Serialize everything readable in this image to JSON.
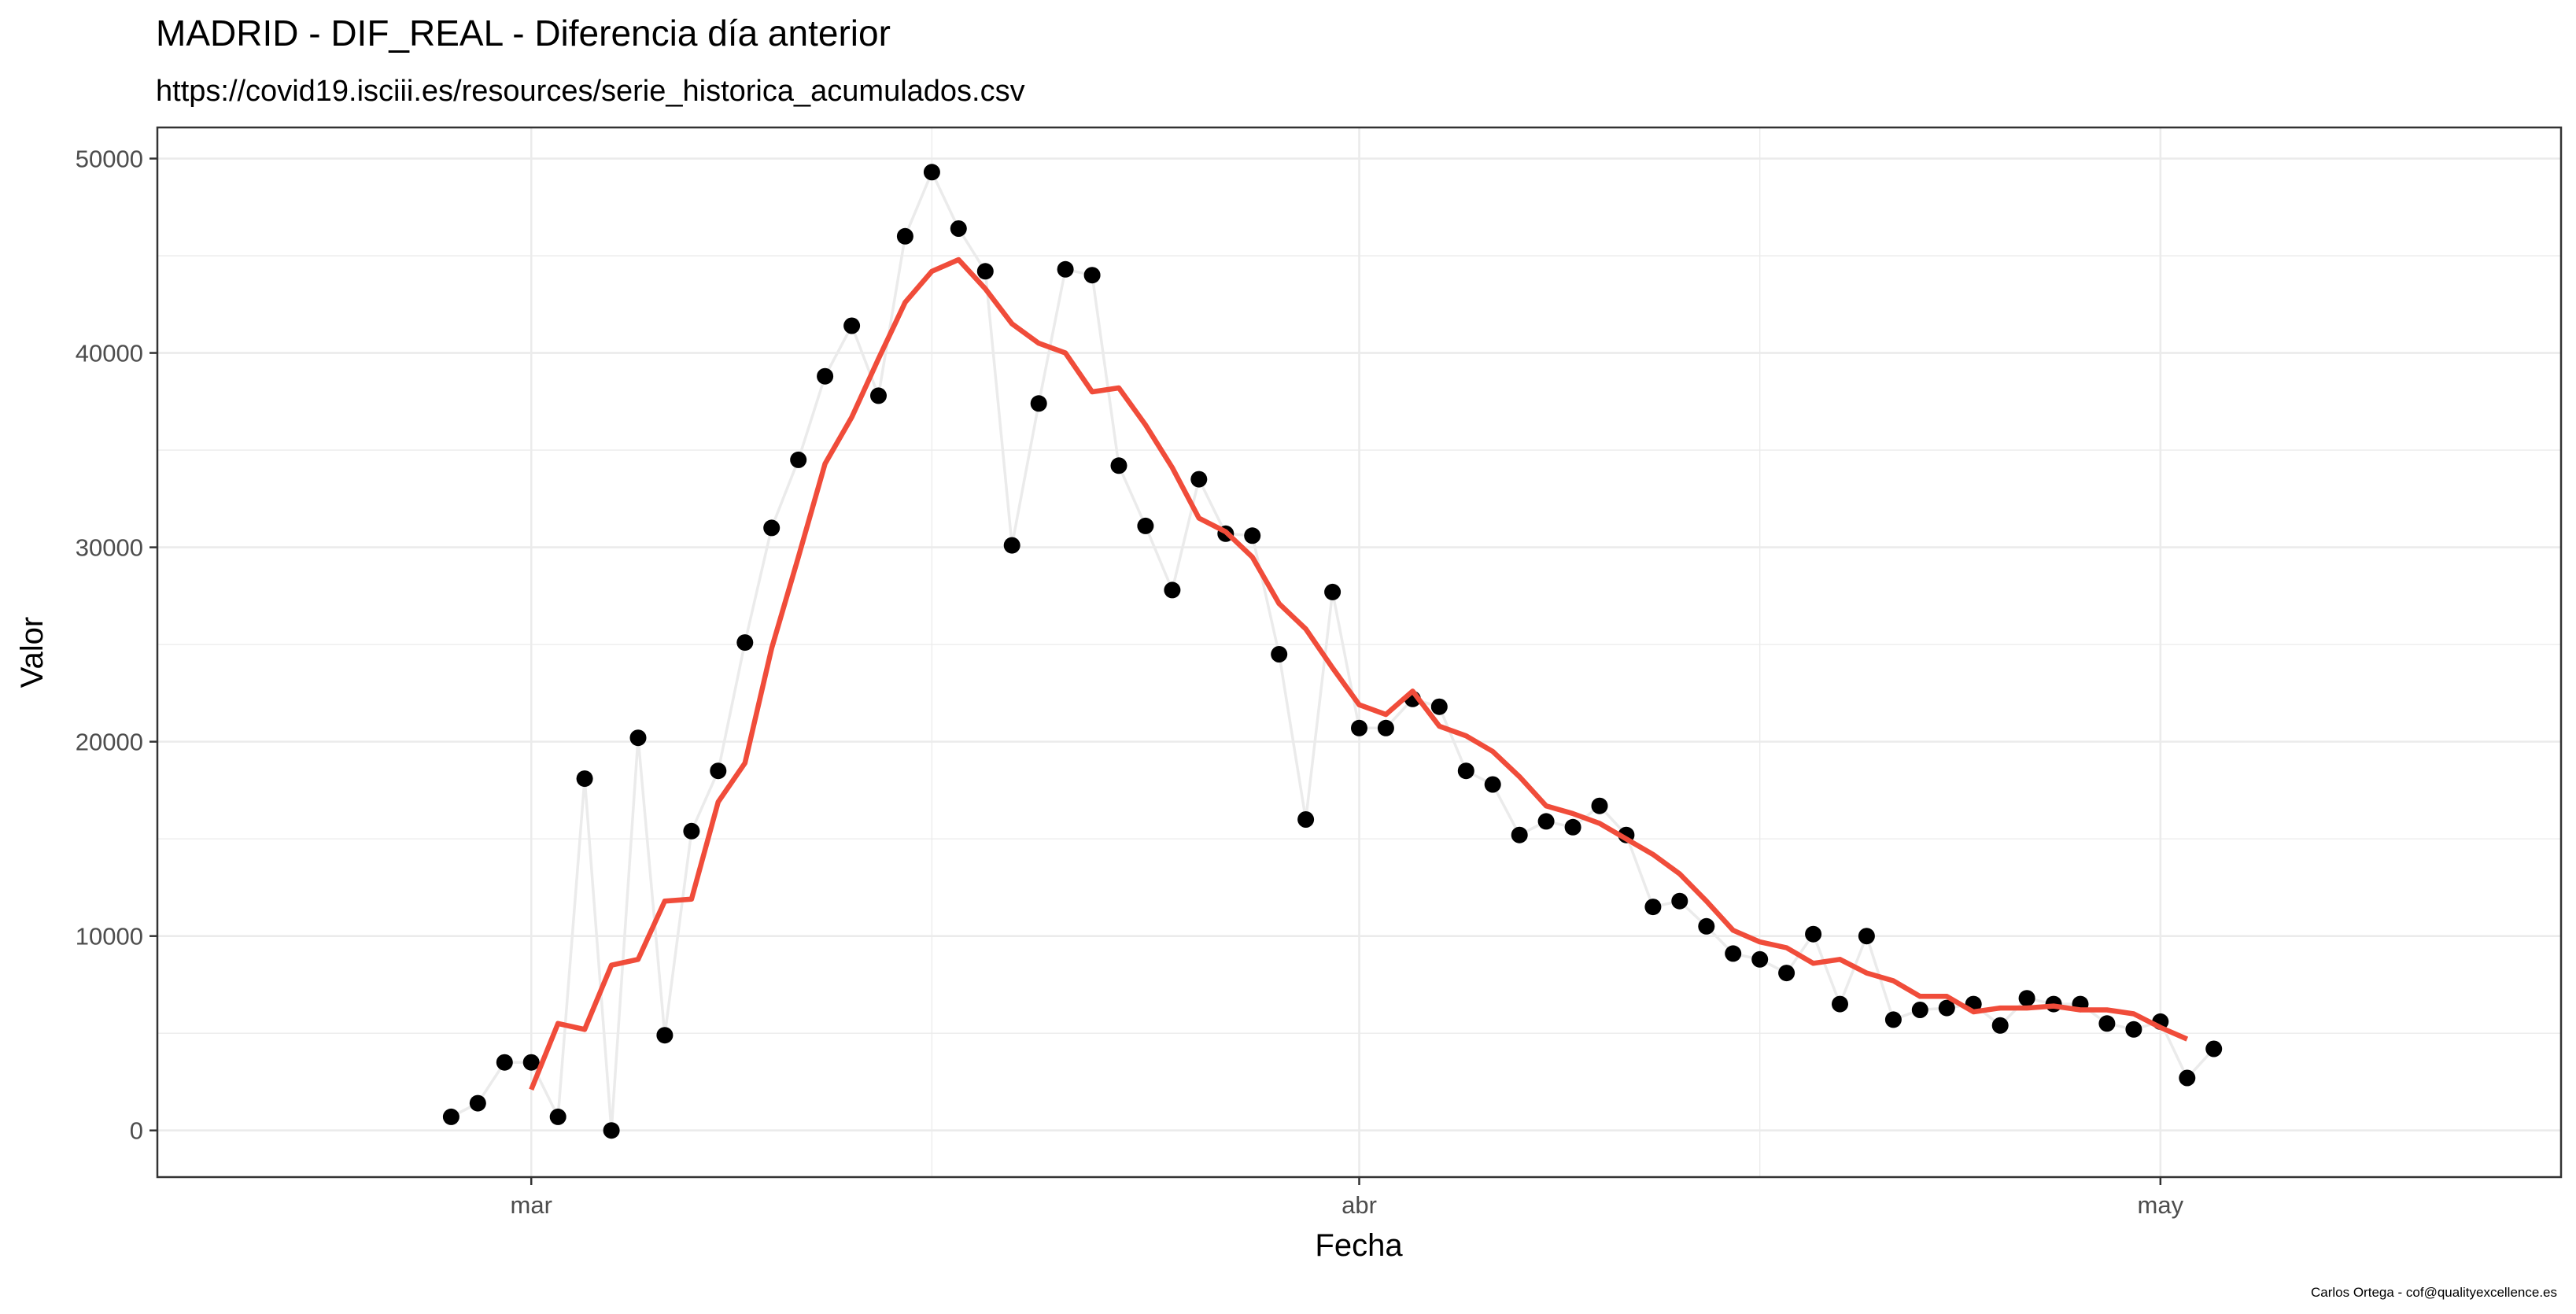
{
  "chart_data": {
    "type": "scatter",
    "title": "MADRID - DIF_REAL - Diferencia día anterior",
    "subtitle": "https://covid19.isciii.es/resources/serie_historica_acumulados.csv",
    "xlabel": "Fecha",
    "ylabel": "Valor",
    "caption": "Carlos Ortega - cof@qualityexcellence.es",
    "x_ticks": [
      {
        "date": "2020-03-01",
        "label": "mar"
      },
      {
        "date": "2020-04-01",
        "label": "abr"
      },
      {
        "date": "2020-05-01",
        "label": "may"
      }
    ],
    "y_ticks": [
      0,
      10000,
      20000,
      30000,
      40000,
      50000
    ],
    "xlim": [
      "2020-02-16",
      "2020-05-16"
    ],
    "ylim": [
      -2400,
      51600
    ],
    "grid": true,
    "theme": "bw",
    "colors": {
      "points": "#000000",
      "connector": "#ebebeb",
      "smooth": "#f04c3a"
    },
    "series": [
      {
        "type": "points",
        "points": [
          [
            "2020-02-27",
            700
          ],
          [
            "2020-02-28",
            1400
          ],
          [
            "2020-02-29",
            3500
          ],
          [
            "2020-03-01",
            3500
          ],
          [
            "2020-03-02",
            700
          ],
          [
            "2020-03-03",
            18100
          ],
          [
            "2020-03-04",
            0
          ],
          [
            "2020-03-05",
            20200
          ],
          [
            "2020-03-06",
            4900
          ],
          [
            "2020-03-07",
            15400
          ],
          [
            "2020-03-08",
            18500
          ],
          [
            "2020-03-09",
            25100
          ],
          [
            "2020-03-10",
            31000
          ],
          [
            "2020-03-11",
            34500
          ],
          [
            "2020-03-12",
            38800
          ],
          [
            "2020-03-13",
            41400
          ],
          [
            "2020-03-14",
            37800
          ],
          [
            "2020-03-15",
            46000
          ],
          [
            "2020-03-16",
            49300
          ],
          [
            "2020-03-17",
            46400
          ],
          [
            "2020-03-18",
            44200
          ],
          [
            "2020-03-19",
            30100
          ],
          [
            "2020-03-20",
            37400
          ],
          [
            "2020-03-21",
            44300
          ],
          [
            "2020-03-22",
            44000
          ],
          [
            "2020-03-23",
            34200
          ],
          [
            "2020-03-24",
            31100
          ],
          [
            "2020-03-25",
            27800
          ],
          [
            "2020-03-26",
            33500
          ],
          [
            "2020-03-27",
            30700
          ],
          [
            "2020-03-28",
            30600
          ],
          [
            "2020-03-29",
            24500
          ],
          [
            "2020-03-30",
            16000
          ],
          [
            "2020-03-31",
            27700
          ],
          [
            "2020-04-01",
            20700
          ],
          [
            "2020-04-02",
            20700
          ],
          [
            "2020-04-03",
            22200
          ],
          [
            "2020-04-04",
            21800
          ],
          [
            "2020-04-05",
            18500
          ],
          [
            "2020-04-06",
            17800
          ],
          [
            "2020-04-07",
            15200
          ],
          [
            "2020-04-08",
            15900
          ],
          [
            "2020-04-09",
            15600
          ],
          [
            "2020-04-10",
            16700
          ],
          [
            "2020-04-11",
            15200
          ],
          [
            "2020-04-12",
            11500
          ],
          [
            "2020-04-13",
            11800
          ],
          [
            "2020-04-14",
            10500
          ],
          [
            "2020-04-15",
            9100
          ],
          [
            "2020-04-16",
            8800
          ],
          [
            "2020-04-17",
            8100
          ],
          [
            "2020-04-18",
            10100
          ],
          [
            "2020-04-19",
            6500
          ],
          [
            "2020-04-20",
            10000
          ],
          [
            "2020-04-21",
            5700
          ],
          [
            "2020-04-22",
            6200
          ],
          [
            "2020-04-23",
            6300
          ],
          [
            "2020-04-24",
            6500
          ],
          [
            "2020-04-25",
            5400
          ],
          [
            "2020-04-26",
            6800
          ],
          [
            "2020-04-27",
            6500
          ],
          [
            "2020-04-28",
            6500
          ],
          [
            "2020-04-29",
            5500
          ],
          [
            "2020-04-30",
            5200
          ],
          [
            "2020-05-01",
            5600
          ],
          [
            "2020-05-02",
            2700
          ],
          [
            "2020-05-03",
            4200
          ]
        ]
      },
      {
        "type": "line",
        "points": [
          [
            "2020-03-01",
            2100
          ],
          [
            "2020-03-02",
            5500
          ],
          [
            "2020-03-03",
            5200
          ],
          [
            "2020-03-04",
            8500
          ],
          [
            "2020-03-05",
            8800
          ],
          [
            "2020-03-06",
            11800
          ],
          [
            "2020-03-07",
            11900
          ],
          [
            "2020-03-08",
            16900
          ],
          [
            "2020-03-09",
            18900
          ],
          [
            "2020-03-10",
            24800
          ],
          [
            "2020-03-11",
            29500
          ],
          [
            "2020-03-12",
            34300
          ],
          [
            "2020-03-13",
            36700
          ],
          [
            "2020-03-14",
            39700
          ],
          [
            "2020-03-15",
            42600
          ],
          [
            "2020-03-16",
            44200
          ],
          [
            "2020-03-17",
            44800
          ],
          [
            "2020-03-18",
            43300
          ],
          [
            "2020-03-19",
            41500
          ],
          [
            "2020-03-20",
            40500
          ],
          [
            "2020-03-21",
            40000
          ],
          [
            "2020-03-22",
            38000
          ],
          [
            "2020-03-23",
            38200
          ],
          [
            "2020-03-24",
            36300
          ],
          [
            "2020-03-25",
            34100
          ],
          [
            "2020-03-26",
            31500
          ],
          [
            "2020-03-27",
            30800
          ],
          [
            "2020-03-28",
            29500
          ],
          [
            "2020-03-29",
            27100
          ],
          [
            "2020-03-30",
            25800
          ],
          [
            "2020-03-31",
            23800
          ],
          [
            "2020-04-01",
            21900
          ],
          [
            "2020-04-02",
            21400
          ],
          [
            "2020-04-03",
            22600
          ],
          [
            "2020-04-04",
            20800
          ],
          [
            "2020-04-05",
            20300
          ],
          [
            "2020-04-06",
            19500
          ],
          [
            "2020-04-07",
            18200
          ],
          [
            "2020-04-08",
            16700
          ],
          [
            "2020-04-09",
            16300
          ],
          [
            "2020-04-10",
            15800
          ],
          [
            "2020-04-11",
            15000
          ],
          [
            "2020-04-12",
            14200
          ],
          [
            "2020-04-13",
            13200
          ],
          [
            "2020-04-14",
            11800
          ],
          [
            "2020-04-15",
            10300
          ],
          [
            "2020-04-16",
            9700
          ],
          [
            "2020-04-17",
            9400
          ],
          [
            "2020-04-18",
            8600
          ],
          [
            "2020-04-19",
            8800
          ],
          [
            "2020-04-20",
            8100
          ],
          [
            "2020-04-21",
            7700
          ],
          [
            "2020-04-22",
            6900
          ],
          [
            "2020-04-23",
            6900
          ],
          [
            "2020-04-24",
            6100
          ],
          [
            "2020-04-25",
            6300
          ],
          [
            "2020-04-26",
            6300
          ],
          [
            "2020-04-27",
            6400
          ],
          [
            "2020-04-28",
            6200
          ],
          [
            "2020-04-29",
            6200
          ],
          [
            "2020-04-30",
            6000
          ],
          [
            "2020-05-01",
            5300
          ],
          [
            "2020-05-02",
            4700
          ]
        ]
      }
    ]
  }
}
